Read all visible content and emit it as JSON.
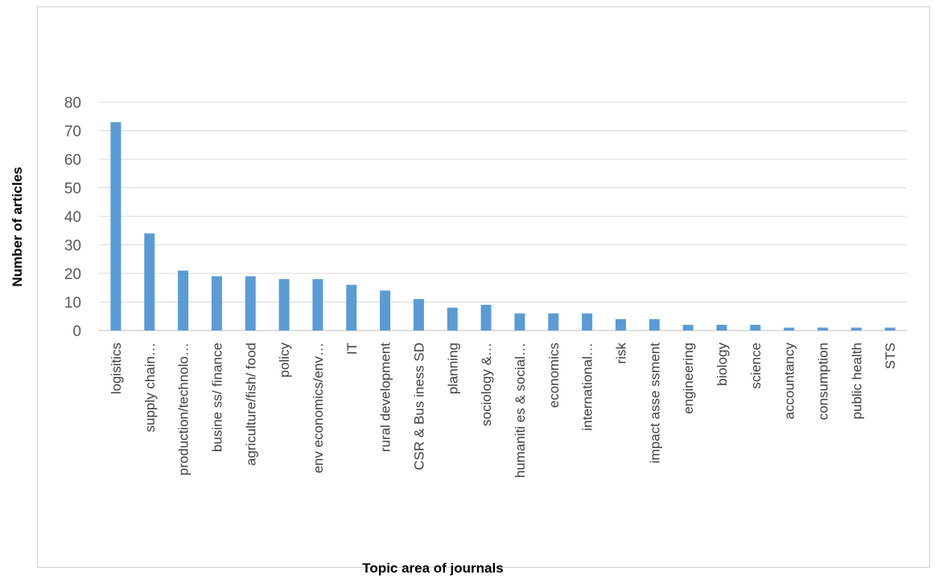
{
  "chart_data": {
    "type": "bar",
    "title": "",
    "xlabel": "Topic area of journals",
    "ylabel": "Number of articles",
    "ylim": [
      0,
      80
    ],
    "yticks": [
      0,
      10,
      20,
      30,
      40,
      50,
      60,
      70,
      80
    ],
    "grid": true,
    "legend": "none",
    "bar_color": "#5b9bd5",
    "categories": [
      "logisitics",
      "supply chain…",
      "production/technolo…",
      "busine ss/ finance",
      "agriculture/fish/ food",
      "policy",
      "env economics/env…",
      "IT",
      "rural development",
      "CSR & Bus iness SD",
      "planning",
      "sociology &…",
      "humaniti es & social…",
      "economics",
      "international…",
      "risk",
      "impact asse ssment",
      "engineering",
      "biology",
      "science",
      "accountancy",
      "consumption",
      "public health",
      "STS"
    ],
    "values": [
      73,
      34,
      21,
      19,
      19,
      18,
      18,
      16,
      14,
      11,
      8,
      9,
      6,
      6,
      6,
      4,
      4,
      2,
      2,
      2,
      1,
      1,
      1,
      1
    ]
  }
}
